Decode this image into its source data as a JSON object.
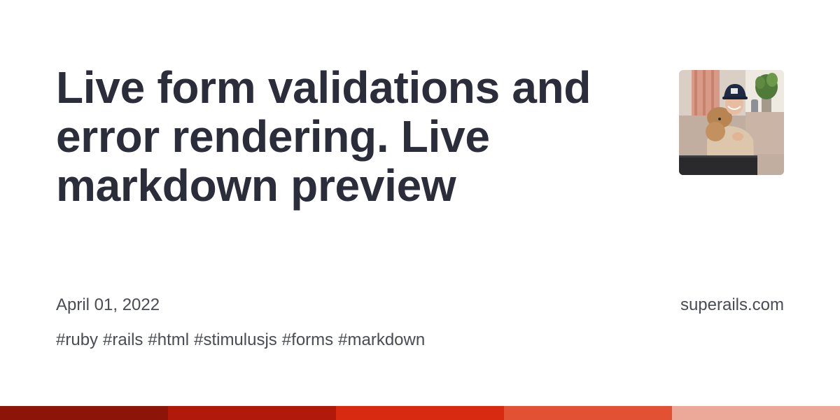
{
  "title": "Live form validations and error rendering. Live markdown preview",
  "date": "April 01, 2022",
  "site": "superails.com",
  "tags": [
    "#ruby",
    "#rails",
    "#html",
    "#stimulusjs",
    "#forms",
    "#markdown"
  ],
  "colors": {
    "title": "#2b2d3a",
    "meta_text": "#4a4c55",
    "bar_segments": [
      "#8d1409",
      "#b11a0b",
      "#d72a10",
      "#e35134",
      "#eca99a"
    ]
  },
  "avatar": {
    "icon": "author-photo-icon"
  }
}
